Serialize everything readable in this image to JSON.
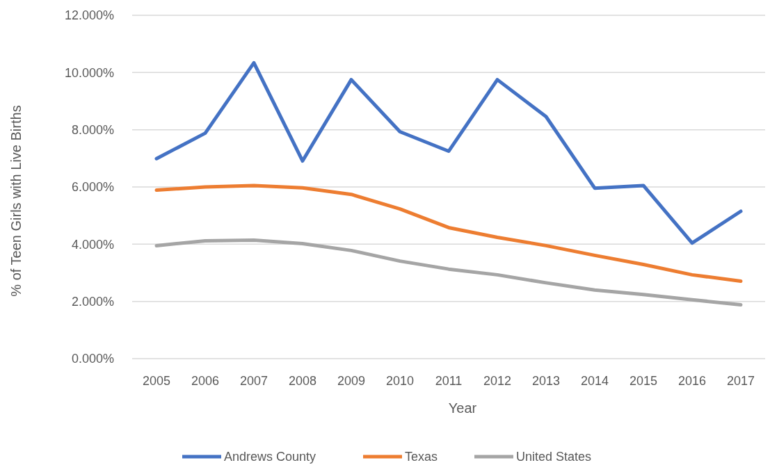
{
  "chart_data": {
    "type": "line",
    "xlabel": "Year",
    "ylabel": "% of Teen Girls with Live Births",
    "categories": [
      "2005",
      "2006",
      "2007",
      "2008",
      "2009",
      "2010",
      "2011",
      "2012",
      "2013",
      "2014",
      "2015",
      "2016",
      "2017"
    ],
    "series": [
      {
        "name": "Andrews County",
        "color": "#4472c4",
        "values": [
          6.99,
          7.88,
          10.34,
          6.91,
          9.75,
          7.93,
          7.25,
          9.75,
          8.46,
          5.96,
          6.05,
          4.04,
          5.15
        ]
      },
      {
        "name": "Texas",
        "color": "#ed7d31",
        "values": [
          5.89,
          6.0,
          6.05,
          5.97,
          5.74,
          5.23,
          4.58,
          4.24,
          3.95,
          3.61,
          3.29,
          2.93,
          2.71
        ]
      },
      {
        "name": "United States",
        "color": "#a5a5a5",
        "values": [
          3.95,
          4.12,
          4.14,
          4.02,
          3.78,
          3.41,
          3.13,
          2.93,
          2.65,
          2.4,
          2.24,
          2.06,
          1.88
        ]
      }
    ],
    "ylim": [
      0,
      12
    ],
    "yticks": [
      {
        "value": 0,
        "label": "0.000%"
      },
      {
        "value": 2,
        "label": "2.000%"
      },
      {
        "value": 4,
        "label": "4.000%"
      },
      {
        "value": 6,
        "label": "6.000%"
      },
      {
        "value": 8,
        "label": "8.000%"
      },
      {
        "value": 10,
        "label": "10.000%"
      },
      {
        "value": 12,
        "label": "12.000%"
      }
    ],
    "grid": "y",
    "legend": "bottom",
    "marker": "none",
    "line_style": "solid"
  }
}
